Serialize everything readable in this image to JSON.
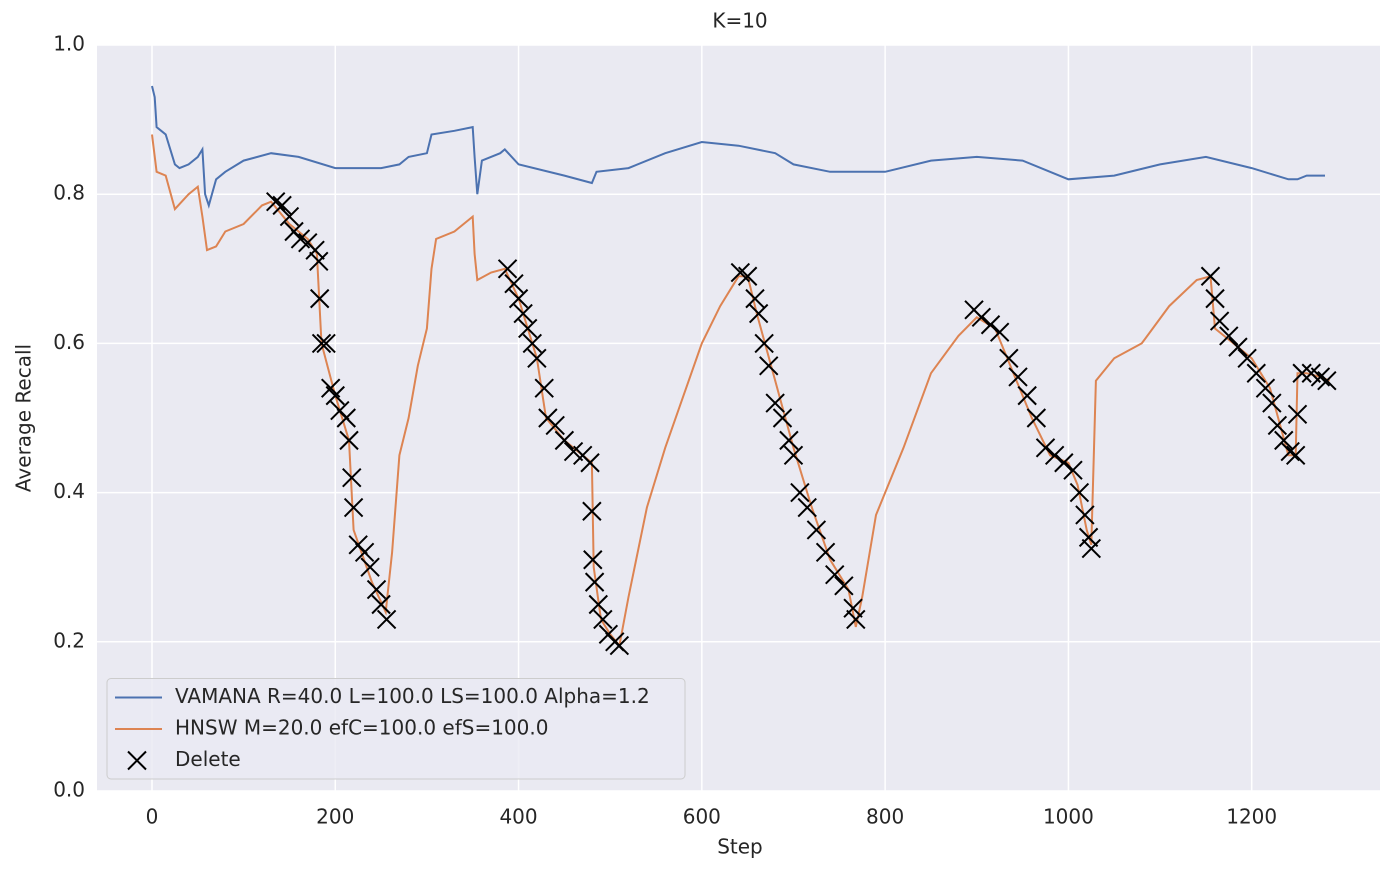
{
  "chart_data": {
    "type": "line",
    "title": "K=10",
    "x_label": "Step",
    "y_label": "Average Recall",
    "xlim": [
      -60,
      1340
    ],
    "ylim": [
      0,
      1
    ],
    "xticks": [
      0,
      200,
      400,
      600,
      800,
      1000,
      1200
    ],
    "yticks": [
      {
        "value": 0,
        "label": "0.0"
      },
      {
        "value": 0.2,
        "label": "0.2"
      },
      {
        "value": 0.4,
        "label": "0.4"
      },
      {
        "value": 0.6,
        "label": "0.6"
      },
      {
        "value": 0.8,
        "label": "0.8"
      },
      {
        "value": 1,
        "label": "1.0"
      }
    ],
    "grid": true,
    "legend": "lower left",
    "series": [
      {
        "name": "VAMANA R=40.0 L=100.0 LS=100.0 Alpha=1.2",
        "kind": "line",
        "color": "#4c72b0",
        "x": [
          0,
          3,
          5,
          10,
          15,
          20,
          25,
          30,
          40,
          50,
          55,
          58,
          62,
          70,
          80,
          100,
          130,
          160,
          200,
          250,
          270,
          280,
          300,
          305,
          330,
          350,
          352,
          355,
          360,
          380,
          385,
          400,
          450,
          480,
          485,
          520,
          560,
          600,
          640,
          680,
          700,
          740,
          800,
          850,
          900,
          950,
          1000,
          1050,
          1100,
          1150,
          1200,
          1240,
          1250,
          1260,
          1280
        ],
        "values": [
          0.945,
          0.93,
          0.89,
          0.885,
          0.88,
          0.86,
          0.84,
          0.835,
          0.84,
          0.85,
          0.86,
          0.8,
          0.785,
          0.82,
          0.83,
          0.845,
          0.855,
          0.85,
          0.835,
          0.835,
          0.84,
          0.85,
          0.855,
          0.88,
          0.885,
          0.89,
          0.85,
          0.8,
          0.845,
          0.855,
          0.86,
          0.84,
          0.825,
          0.815,
          0.83,
          0.835,
          0.855,
          0.87,
          0.865,
          0.855,
          0.84,
          0.83,
          0.83,
          0.845,
          0.85,
          0.845,
          0.82,
          0.825,
          0.84,
          0.85,
          0.835,
          0.82,
          0.82,
          0.825,
          0.825
        ]
      },
      {
        "name": "HNSW M=20.0 efC=100.0 efS=100.0",
        "kind": "line",
        "color": "#dd8452",
        "x": [
          0,
          5,
          15,
          25,
          40,
          50,
          55,
          60,
          70,
          80,
          100,
          120,
          130,
          150,
          170,
          180,
          185,
          200,
          215,
          220,
          240,
          255,
          262,
          270,
          280,
          290,
          300,
          305,
          310,
          330,
          350,
          352,
          355,
          370,
          385,
          400,
          420,
          430,
          450,
          470,
          480,
          482,
          490,
          500,
          510,
          520,
          540,
          560,
          580,
          600,
          620,
          640,
          650,
          660,
          680,
          700,
          720,
          740,
          760,
          768,
          775,
          790,
          820,
          850,
          880,
          900,
          920,
          940,
          960,
          980,
          1000,
          1010,
          1020,
          1025,
          1030,
          1050,
          1080,
          1110,
          1140,
          1155,
          1160,
          1180,
          1200,
          1220,
          1240,
          1248,
          1250,
          1260,
          1275,
          1285
        ],
        "values": [
          0.88,
          0.83,
          0.825,
          0.78,
          0.8,
          0.81,
          0.77,
          0.725,
          0.73,
          0.75,
          0.76,
          0.785,
          0.79,
          0.76,
          0.74,
          0.72,
          0.6,
          0.53,
          0.47,
          0.35,
          0.28,
          0.24,
          0.32,
          0.45,
          0.5,
          0.57,
          0.62,
          0.7,
          0.74,
          0.75,
          0.77,
          0.72,
          0.685,
          0.695,
          0.7,
          0.66,
          0.58,
          0.5,
          0.47,
          0.45,
          0.44,
          0.3,
          0.23,
          0.21,
          0.195,
          0.26,
          0.38,
          0.46,
          0.53,
          0.6,
          0.65,
          0.69,
          0.69,
          0.64,
          0.55,
          0.46,
          0.38,
          0.31,
          0.27,
          0.22,
          0.26,
          0.37,
          0.46,
          0.56,
          0.61,
          0.635,
          0.62,
          0.56,
          0.5,
          0.45,
          0.44,
          0.41,
          0.35,
          0.33,
          0.55,
          0.58,
          0.6,
          0.65,
          0.685,
          0.69,
          0.62,
          0.6,
          0.58,
          0.54,
          0.45,
          0.45,
          0.56,
          0.56,
          0.555,
          0.55
        ]
      },
      {
        "name": "Delete",
        "kind": "scatter",
        "color": "#000000",
        "x": [
          135,
          142,
          150,
          155,
          162,
          170,
          178,
          182,
          183,
          185,
          190,
          195,
          200,
          205,
          212,
          215,
          218,
          220,
          225,
          232,
          238,
          245,
          250,
          256,
          388,
          395,
          400,
          405,
          410,
          415,
          420,
          428,
          432,
          440,
          450,
          460,
          470,
          478,
          480,
          481,
          483,
          487,
          492,
          498,
          505,
          510,
          642,
          650,
          658,
          662,
          668,
          673,
          680,
          688,
          695,
          700,
          707,
          715,
          725,
          735,
          745,
          755,
          765,
          768,
          897,
          905,
          915,
          925,
          935,
          945,
          955,
          965,
          975,
          985,
          995,
          1005,
          1012,
          1018,
          1022,
          1025,
          1155,
          1160,
          1165,
          1175,
          1185,
          1195,
          1205,
          1215,
          1222,
          1228,
          1235,
          1242,
          1248,
          1250,
          1255,
          1265,
          1275,
          1282
        ],
        "values": [
          0.79,
          0.785,
          0.77,
          0.75,
          0.74,
          0.735,
          0.725,
          0.71,
          0.66,
          0.6,
          0.6,
          0.54,
          0.53,
          0.51,
          0.5,
          0.47,
          0.42,
          0.38,
          0.33,
          0.32,
          0.3,
          0.27,
          0.25,
          0.23,
          0.7,
          0.68,
          0.66,
          0.64,
          0.62,
          0.6,
          0.58,
          0.54,
          0.5,
          0.49,
          0.47,
          0.455,
          0.45,
          0.44,
          0.375,
          0.31,
          0.28,
          0.25,
          0.23,
          0.21,
          0.2,
          0.195,
          0.695,
          0.69,
          0.66,
          0.64,
          0.6,
          0.57,
          0.52,
          0.5,
          0.47,
          0.45,
          0.4,
          0.38,
          0.35,
          0.32,
          0.29,
          0.275,
          0.245,
          0.23,
          0.645,
          0.635,
          0.625,
          0.615,
          0.58,
          0.555,
          0.53,
          0.5,
          0.46,
          0.45,
          0.44,
          0.43,
          0.4,
          0.37,
          0.34,
          0.325,
          0.69,
          0.66,
          0.63,
          0.61,
          0.595,
          0.58,
          0.56,
          0.54,
          0.52,
          0.49,
          0.47,
          0.455,
          0.45,
          0.505,
          0.56,
          0.56,
          0.555,
          0.55
        ]
      }
    ]
  }
}
